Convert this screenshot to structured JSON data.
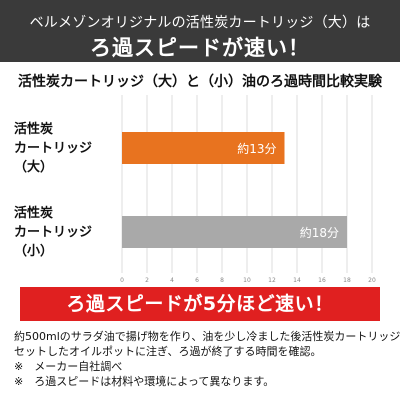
{
  "header": {
    "line1": "ベルメゾンオリジナルの活性炭カートリッジ（大）は",
    "line2": "ろ過スピードが速い！"
  },
  "highlight_banner": "ろ過スピードが5分ほど速い！",
  "footnotes": [
    "約500mlのサラダ油で揚げ物を作り、油を少し冷ました後活性炭カートリッジを",
    "セットしたオイルポットに注ぎ、ろ過が終了する時間を確認。",
    "※　メーカー自社調べ",
    "※　ろ過スピードは材料や環境によって異なります。"
  ],
  "colors": {
    "banner_bg": "#3a3a3a",
    "bar_large": "#e8731f",
    "bar_small": "#a9a9a9",
    "highlight": "#e02020"
  },
  "chart_data": {
    "type": "bar",
    "orientation": "horizontal",
    "title": "活性炭カートリッジ（大）と（小）油のろ過時間比較実験",
    "categories": [
      [
        "活性炭",
        "カートリッジ",
        "（大）"
      ],
      [
        "活性炭",
        "カートリッジ",
        "（小）"
      ]
    ],
    "values": [
      13,
      18
    ],
    "value_labels": [
      "約13分",
      "約18分"
    ],
    "bar_colors": [
      "#e8731f",
      "#a9a9a9"
    ],
    "xlim": [
      0,
      20
    ],
    "xticks": [
      "0",
      "2",
      "4",
      "6",
      "8",
      "10",
      "12",
      "14",
      "16",
      "18",
      "20"
    ],
    "grid": true
  }
}
